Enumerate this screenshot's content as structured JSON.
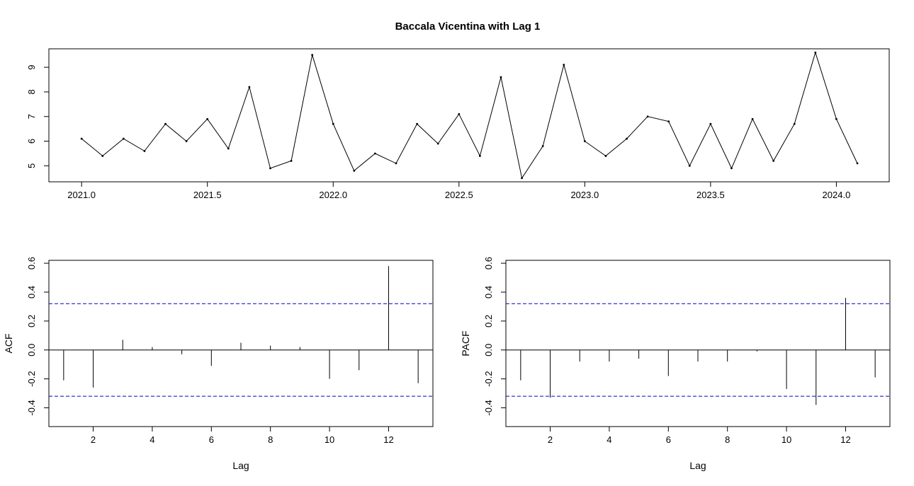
{
  "title": "Baccala Vicentina with Lag 1",
  "colors": {
    "line": "#000000",
    "ci": "#0000cc",
    "frame": "#000000"
  },
  "chart_data": [
    {
      "name": "series",
      "type": "line",
      "xlabel": "",
      "ylabel": "",
      "x_start": 2021.0,
      "x_step": 0.08333333,
      "values": [
        6.1,
        5.4,
        6.1,
        5.6,
        6.7,
        6.0,
        6.9,
        5.7,
        8.2,
        4.9,
        5.2,
        9.5,
        6.7,
        4.8,
        5.5,
        5.1,
        6.7,
        5.9,
        7.1,
        5.4,
        8.6,
        4.5,
        5.8,
        9.1,
        6.0,
        5.4,
        6.1,
        7.0,
        6.8,
        5.0,
        6.7,
        4.9,
        6.9,
        5.2,
        6.7,
        9.6,
        6.9,
        5.1
      ],
      "xlim": [
        2020.87,
        2024.21
      ],
      "ylim": [
        4.35,
        9.75
      ],
      "xticks": [
        2021.0,
        2021.5,
        2022.0,
        2022.5,
        2023.0,
        2023.5,
        2024.0
      ],
      "xtick_labels": [
        "2021.0",
        "2021.5",
        "2022.0",
        "2022.5",
        "2023.0",
        "2023.5",
        "2024.0"
      ],
      "yticks": [
        5,
        6,
        7,
        8,
        9
      ],
      "ytick_labels": [
        "5",
        "6",
        "7",
        "8",
        "9"
      ],
      "grid": false
    },
    {
      "name": "acf",
      "type": "bar",
      "xlabel": "Lag",
      "ylabel": "ACF",
      "lags": [
        1,
        2,
        3,
        4,
        5,
        6,
        7,
        8,
        9,
        10,
        11,
        12,
        13
      ],
      "values": [
        -0.21,
        -0.26,
        0.07,
        0.02,
        -0.03,
        -0.11,
        0.05,
        0.03,
        0.02,
        -0.2,
        -0.14,
        0.58,
        -0.23
      ],
      "ci": 0.32,
      "xlim": [
        0.5,
        13.5
      ],
      "ylim": [
        -0.53,
        0.62
      ],
      "xticks": [
        2,
        4,
        6,
        8,
        10,
        12
      ],
      "xtick_labels": [
        "2",
        "4",
        "6",
        "8",
        "10",
        "12"
      ],
      "yticks": [
        -0.4,
        -0.2,
        0.0,
        0.2,
        0.4,
        0.6
      ],
      "ytick_labels": [
        "-0.4",
        "-0.2",
        "0.0",
        "0.2",
        "0.4",
        "0.6"
      ]
    },
    {
      "name": "pacf",
      "type": "bar",
      "xlabel": "Lag",
      "ylabel": "PACF",
      "lags": [
        1,
        2,
        3,
        4,
        5,
        6,
        7,
        8,
        9,
        10,
        11,
        12,
        13
      ],
      "values": [
        -0.21,
        -0.33,
        -0.08,
        -0.08,
        -0.06,
        -0.18,
        -0.08,
        -0.08,
        -0.01,
        -0.27,
        -0.38,
        0.36,
        -0.19
      ],
      "ci": 0.32,
      "xlim": [
        0.5,
        13.5
      ],
      "ylim": [
        -0.53,
        0.62
      ],
      "xticks": [
        2,
        4,
        6,
        8,
        10,
        12
      ],
      "xtick_labels": [
        "2",
        "4",
        "6",
        "8",
        "10",
        "12"
      ],
      "yticks": [
        -0.4,
        -0.2,
        0.0,
        0.2,
        0.4,
        0.6
      ],
      "ytick_labels": [
        "-0.4",
        "-0.2",
        "0.0",
        "0.2",
        "0.4",
        "0.6"
      ]
    }
  ]
}
